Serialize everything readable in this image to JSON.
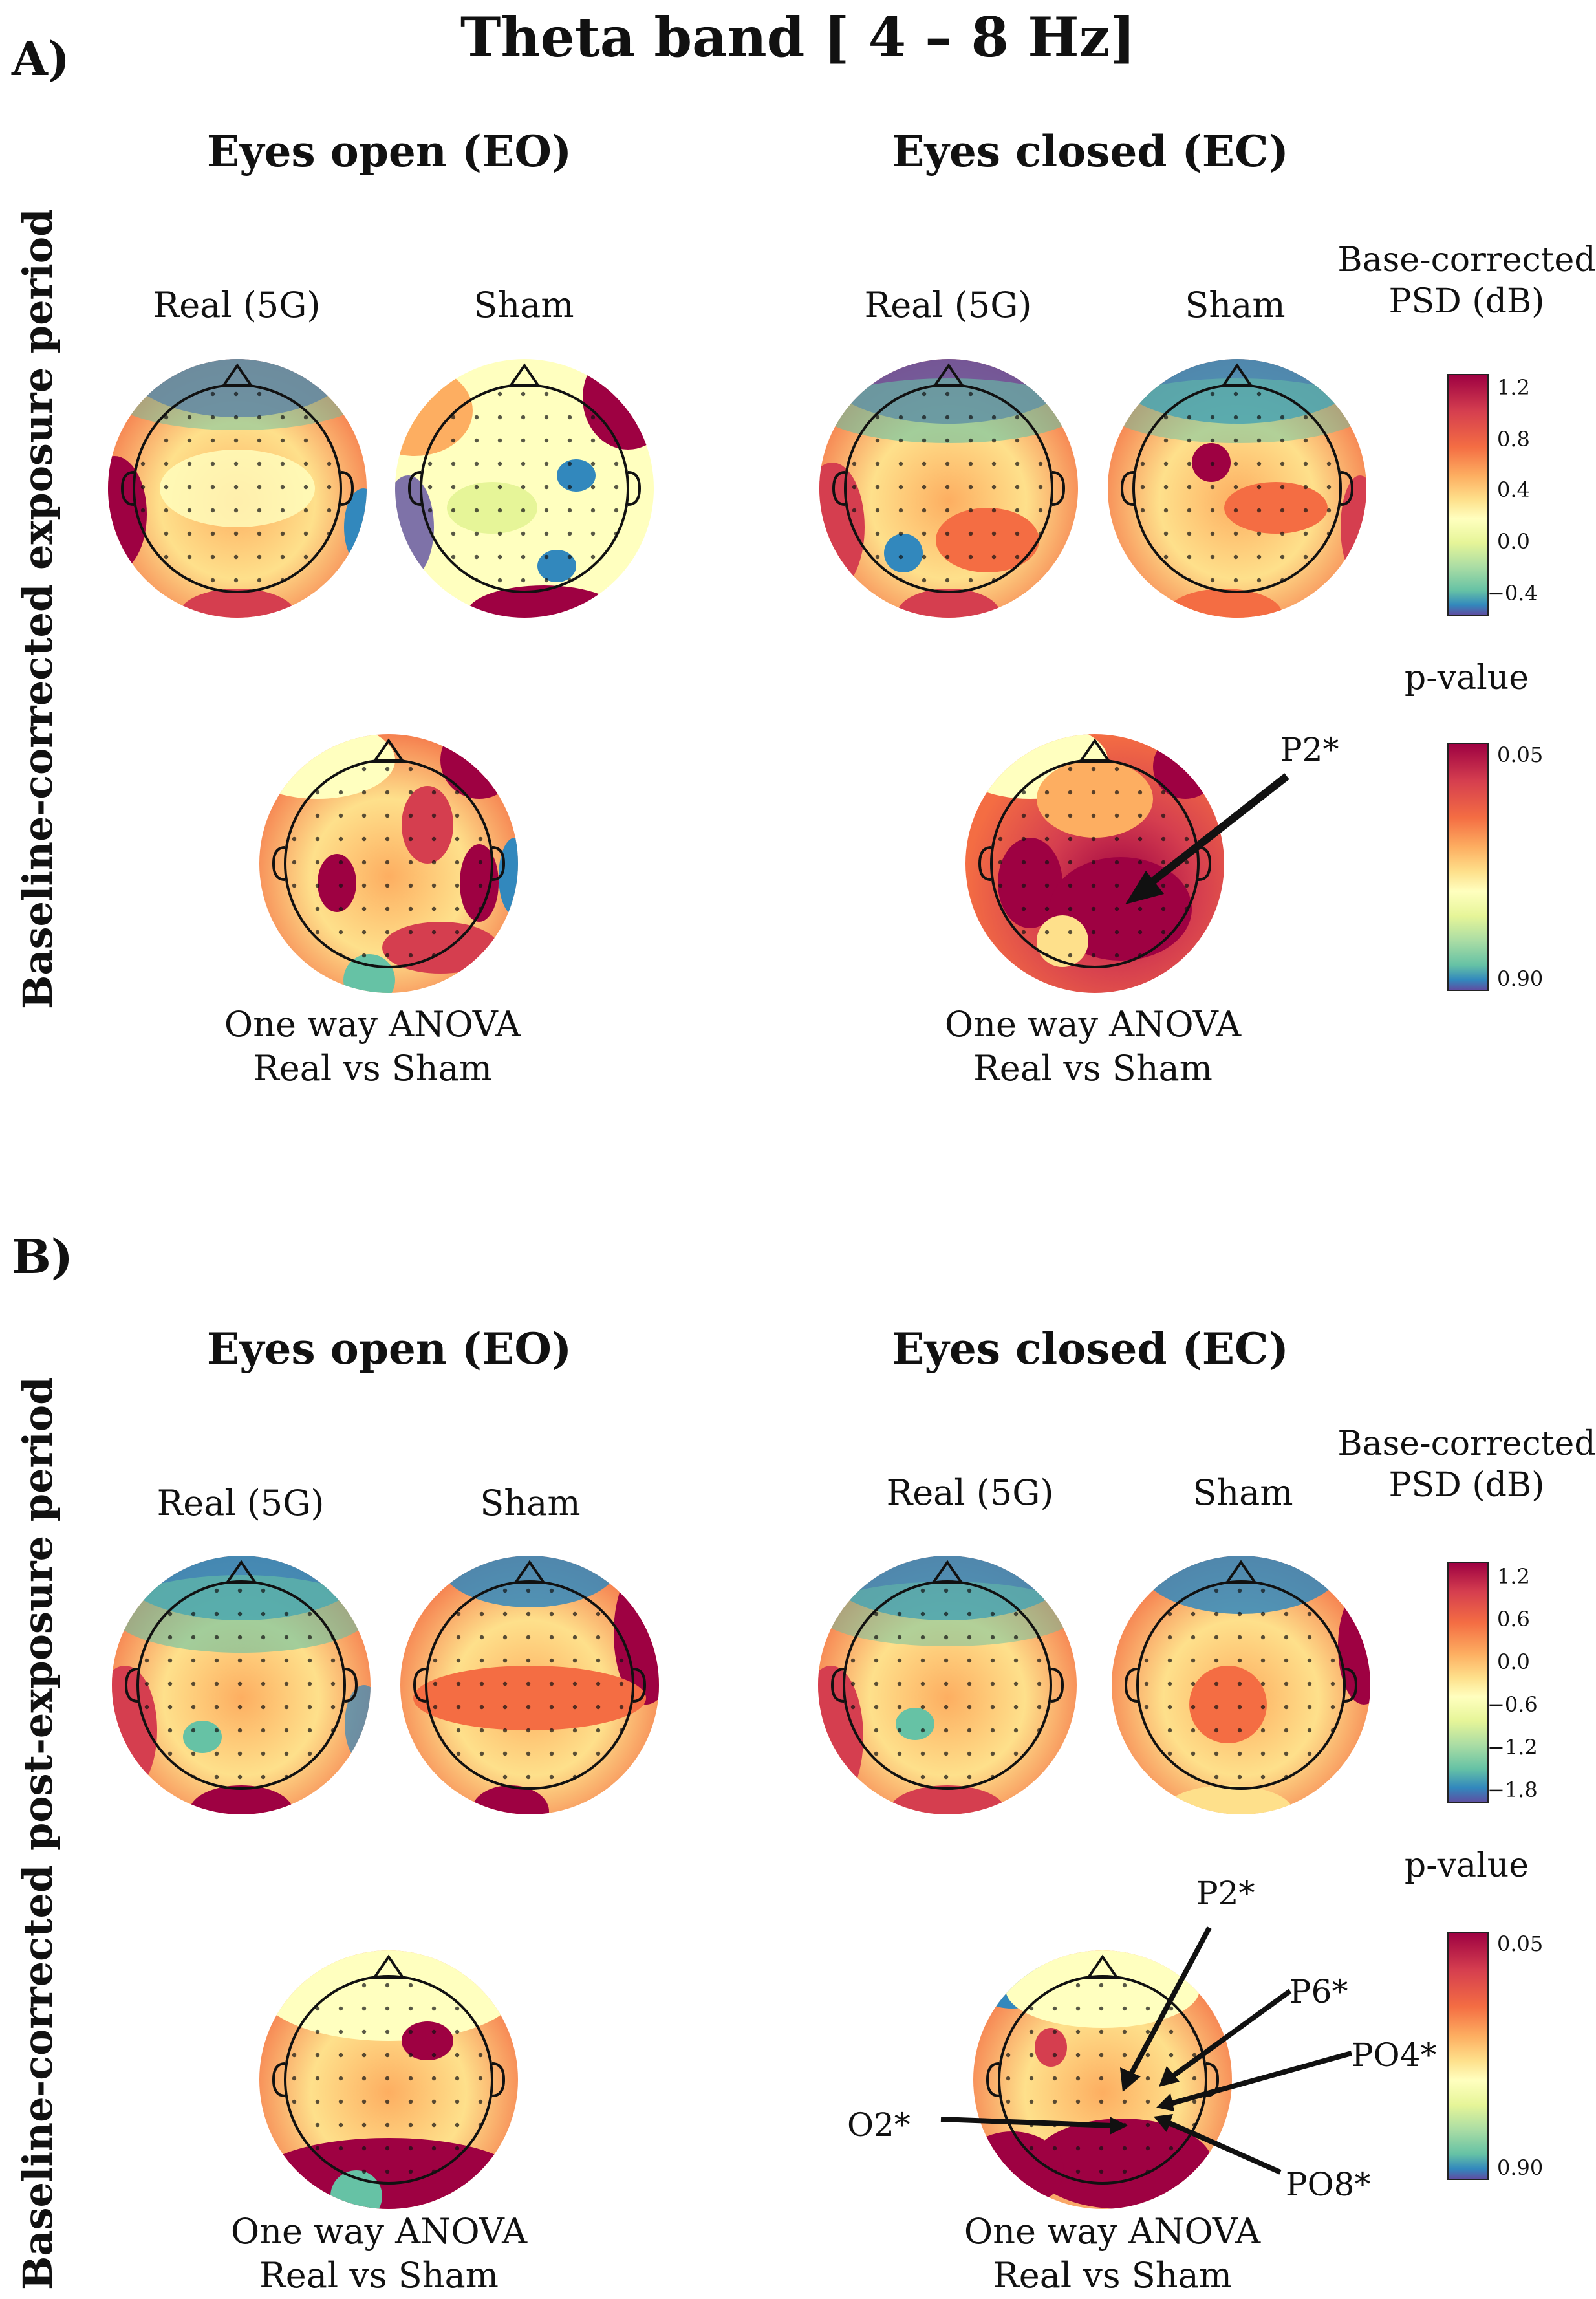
{
  "figure": {
    "title": "Theta band [ 4 – 8 Hz]",
    "panels": [
      {
        "label": "A)",
        "row_label": "Baseline-corrected exposure period",
        "eyes_open": {
          "heading": "Eyes open (EO)",
          "real_label": "Real (5G)",
          "sham_label": "Sham",
          "anova_line1": "One way ANOVA",
          "anova_line2": "Real vs Sham"
        },
        "eyes_closed": {
          "heading": "Eyes closed (EC)",
          "real_label": "Real (5G)",
          "sham_label": "Sham",
          "anova_line1": "One way ANOVA",
          "anova_line2": "Real vs Sham"
        },
        "psd_colorbar": {
          "title_line1": "Base-corrected",
          "title_line2": "PSD (dB)",
          "ticks": [
            "1.2",
            "0.8",
            "0.4",
            "0.0",
            "−0.4"
          ]
        },
        "p_colorbar": {
          "title": "p-value",
          "ticks": [
            "0.05",
            "0.90"
          ]
        },
        "annotations": [
          "P2*"
        ]
      },
      {
        "label": "B)",
        "row_label": "Baseline-corrected post-exposure period",
        "eyes_open": {
          "heading": "Eyes open (EO)",
          "real_label": "Real (5G)",
          "sham_label": "Sham",
          "anova_line1": "One way ANOVA",
          "anova_line2": "Real vs Sham"
        },
        "eyes_closed": {
          "heading": "Eyes closed (EC)",
          "real_label": "Real (5G)",
          "sham_label": "Sham",
          "anova_line1": "One way ANOVA",
          "anova_line2": "Real vs Sham"
        },
        "psd_colorbar": {
          "title_line1": "Base-corrected",
          "title_line2": "PSD (dB)",
          "ticks": [
            "1.2",
            "0.6",
            "0.0",
            "−0.6",
            "−1.2",
            "−1.8"
          ]
        },
        "p_colorbar": {
          "title": "p-value",
          "ticks": [
            "0.05",
            "0.90"
          ]
        },
        "annotations": [
          "P2*",
          "P6*",
          "PO4*",
          "O2*",
          "PO8*"
        ]
      }
    ]
  },
  "colors": {
    "high": "#9e0142",
    "mid_high": "#f46d43",
    "mid": "#ffffbf",
    "mid_low": "#66c2a5",
    "low": "#5e4fa2"
  }
}
